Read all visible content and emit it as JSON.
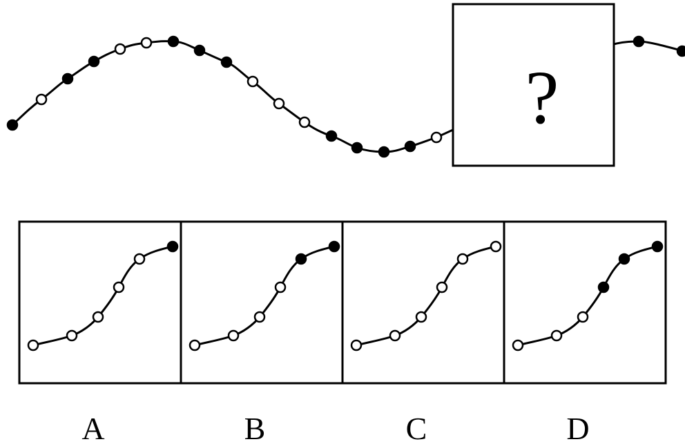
{
  "question_mark": "?",
  "top_sequence": {
    "before_box": [
      "black",
      "white",
      "black",
      "black",
      "white",
      "white",
      "black",
      "black",
      "black",
      "white",
      "white",
      "white",
      "black",
      "black",
      "black",
      "black",
      "white"
    ],
    "after_box": [
      "black",
      "black"
    ]
  },
  "options": [
    {
      "label": "A",
      "dots": [
        "white",
        "white",
        "white",
        "white",
        "white",
        "black"
      ]
    },
    {
      "label": "B",
      "dots": [
        "white",
        "white",
        "white",
        "white",
        "black",
        "black"
      ]
    },
    {
      "label": "C",
      "dots": [
        "white",
        "white",
        "white",
        "white",
        "white",
        "white"
      ]
    },
    {
      "label": "D",
      "dots": [
        "white",
        "white",
        "white",
        "black",
        "black",
        "black"
      ]
    }
  ]
}
